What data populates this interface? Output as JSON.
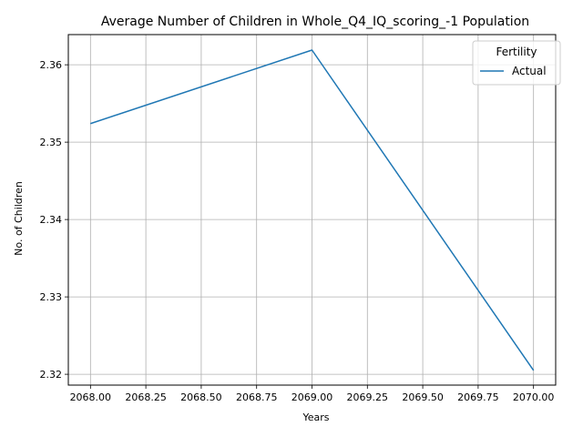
{
  "chart_data": {
    "type": "line",
    "title": "Average Number of Children in Whole_Q4_IQ_scoring_-1 Population",
    "xlabel": "Years",
    "ylabel": "No. of Children",
    "xlim": [
      2067.9,
      2070.1
    ],
    "ylim": [
      2.3186,
      2.3639
    ],
    "x_ticks": [
      2068.0,
      2068.25,
      2068.5,
      2068.75,
      2069.0,
      2069.25,
      2069.5,
      2069.75,
      2070.0
    ],
    "x_tick_labels": [
      "2068.00",
      "2068.25",
      "2068.50",
      "2068.75",
      "2069.00",
      "2069.25",
      "2069.50",
      "2069.75",
      "2070.00"
    ],
    "y_ticks": [
      2.32,
      2.33,
      2.34,
      2.35,
      2.36
    ],
    "y_tick_labels": [
      "2.32",
      "2.33",
      "2.34",
      "2.35",
      "2.36"
    ],
    "grid": true,
    "legend": {
      "title": "Fertility",
      "placement": "top-right"
    },
    "series": [
      {
        "name": "Actual",
        "color": "#1f77b4",
        "x": [
          2068,
          2069,
          2070
        ],
        "y": [
          2.3524,
          2.3619,
          2.3205
        ]
      }
    ]
  }
}
